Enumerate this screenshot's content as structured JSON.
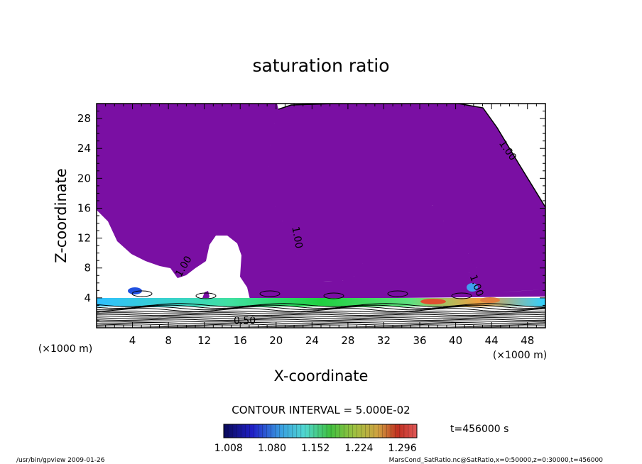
{
  "chart_data": {
    "type": "heatmap",
    "title": "saturation ratio",
    "xlabel": "X-coordinate",
    "ylabel": "Z-coordinate",
    "x_unit": "(×1000 m)",
    "y_unit": "(×1000 m)",
    "xlim": [
      0,
      50
    ],
    "ylim": [
      0,
      30
    ],
    "x_ticks": [
      4,
      8,
      12,
      16,
      20,
      24,
      28,
      32,
      36,
      40,
      44,
      48
    ],
    "y_ticks": [
      4,
      8,
      12,
      16,
      20,
      24,
      28
    ],
    "contour_interval_text": "CONTOUR INTERVAL = 5.000E-02",
    "contour_labels": [
      {
        "text": "1.00",
        "x": 45.5,
        "y": 23.5,
        "angle": 55
      },
      {
        "text": "1.00",
        "x": 22.0,
        "y": 12.0,
        "angle": 80
      },
      {
        "text": "1.00",
        "x": 10.0,
        "y": 8.0,
        "angle": -60
      },
      {
        "text": "1.00",
        "x": 42.0,
        "y": 5.5,
        "angle": 70
      },
      {
        "text": "0.50",
        "x": 16.5,
        "y": 0.5,
        "angle": 0
      }
    ],
    "colorbar": {
      "tick_labels": [
        "1.008",
        "1.080",
        "1.152",
        "1.224",
        "1.296"
      ],
      "range": [
        1.0,
        1.32
      ]
    },
    "time_label": "t=456000 s",
    "footer_left": "/usr/bin/gpview  2009-01-26",
    "footer_right": "MarsCond_SatRatio.nc@SatRatio,x=0:50000,z=0:30000,t=456000",
    "fill_color": "#7a0fa3"
  }
}
